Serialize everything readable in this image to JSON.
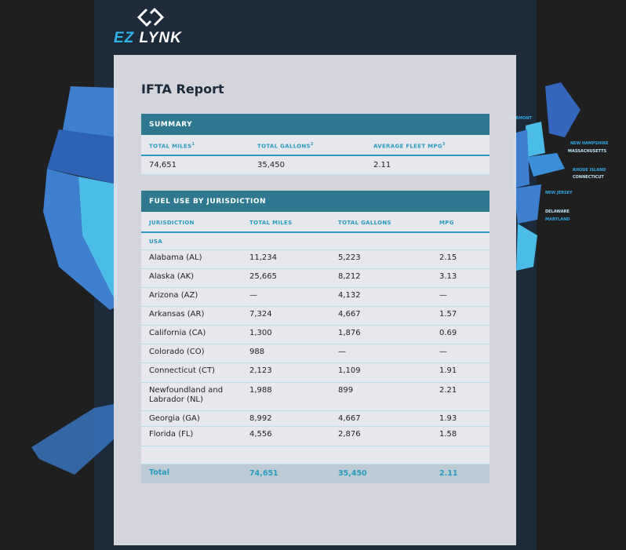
{
  "brand": {
    "name_a": "EZ",
    "name_b": " LYNK"
  },
  "report": {
    "title": "IFTA Report"
  },
  "summary": {
    "heading": "SUMMARY",
    "labels": [
      "TOTAL MILES",
      "TOTAL GALLONS",
      "AVERAGE FLEET MPG"
    ],
    "footnotes": [
      "1",
      "2",
      "3"
    ],
    "values": [
      "74,651",
      "35,450",
      "2.11"
    ]
  },
  "fuel": {
    "heading": "FUEL USE BY JURISDICTION",
    "columns": [
      "JURISDICTION",
      "TOTAL MILES",
      "TOTAL GALLONS",
      "MPG"
    ],
    "group": "USA",
    "rows": [
      [
        "Alabama (AL)",
        "11,234",
        "5,223",
        "2.15"
      ],
      [
        "Alaska (AK)",
        "25,665",
        "8,212",
        "3.13"
      ],
      [
        "Arizona (AZ)",
        "—",
        "4,132",
        "—"
      ],
      [
        "Arkansas (AR)",
        "7,324",
        "4,667",
        "1.57"
      ],
      [
        "California (CA)",
        "1,300",
        "1,876",
        "0.69"
      ],
      [
        "Colorado (CO)",
        "988",
        "—",
        "—"
      ],
      [
        "Connecticut (CT)",
        "2,123",
        "1,109",
        "1.91"
      ],
      [
        "Newfoundland and Labrador (NL)",
        "1,988",
        "899",
        "2.21"
      ],
      [
        "Georgia (GA)",
        "8,992",
        "4,667",
        "1.93"
      ],
      [
        "Florida (FL)",
        "4,556",
        "2,876",
        "1.58"
      ]
    ],
    "total": [
      "Total",
      "74,651",
      "35,450",
      "2.11"
    ]
  },
  "map_labels": [
    "VERMONT",
    "NEW HAMPSHIRE",
    "MASSACHUSETTS",
    "RHODE ISLAND",
    "CONNECTICUT",
    "NEW JERSEY",
    "DELAWARE",
    "MARYLAND"
  ],
  "colors": {
    "accent": "#2f7890",
    "header_text": "#2a9bc0",
    "navy": "#1c2a3a",
    "map_blue": "#3a78c8",
    "map_light": "#4bbbe8"
  }
}
